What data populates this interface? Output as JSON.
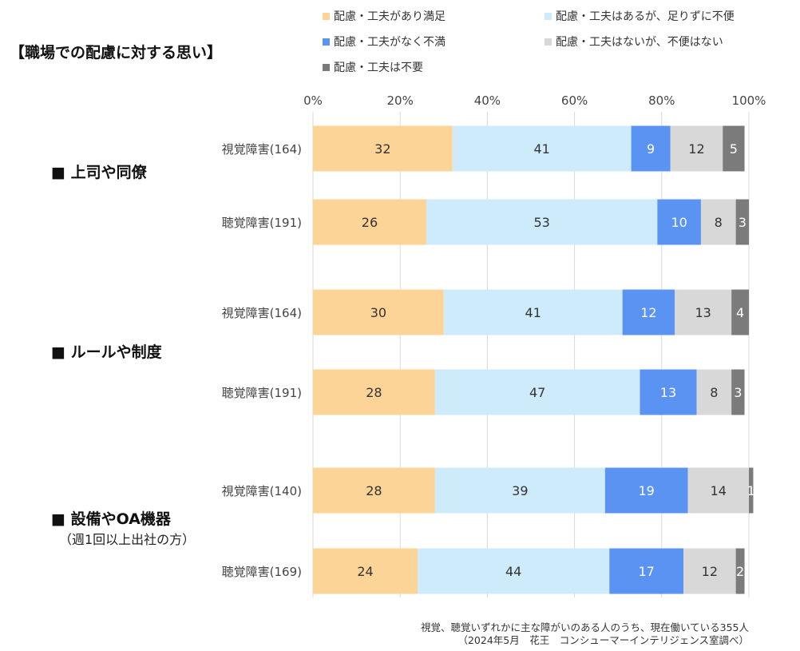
{
  "title": "【職場での配慮に対する思い】",
  "note": {
    "line1": "視覚、聴覚いずれかに主な障がいのある人のうち、現在働いている355人",
    "line2": "（2024年5月　花王　コンシューマーインテリジェンス室調べ）"
  },
  "chart_data": {
    "type": "bar",
    "orientation": "horizontal-stacked-percent",
    "xlim": [
      0,
      100
    ],
    "xticks": [
      "0%",
      "20%",
      "40%",
      "60%",
      "80%",
      "100%"
    ],
    "series": [
      {
        "name": "配慮・工夫があり満足",
        "color": "#fdd497",
        "label_dark": false
      },
      {
        "name": "配慮・工夫はあるが、足りずに不便",
        "color": "#cdebfb",
        "label_dark": false
      },
      {
        "name": "配慮・工夫がなく不満",
        "color": "#5b93f3",
        "label_dark": true
      },
      {
        "name": "配慮・工夫はないが、不便はない",
        "color": "#d8d8d8",
        "label_dark": false
      },
      {
        "name": "配慮・工夫は不要",
        "color": "#7b7b7b",
        "label_dark": true
      }
    ],
    "groups": [
      {
        "label": "■ 上司や同僚",
        "sublabel": "",
        "rows": [
          {
            "label": "視覚障害(164)",
            "values": [
              32,
              41,
              9,
              12,
              5
            ]
          },
          {
            "label": "聴覚障害(191)",
            "values": [
              26,
              53,
              10,
              8,
              3
            ]
          }
        ]
      },
      {
        "label": "■ ルールや制度",
        "sublabel": "",
        "rows": [
          {
            "label": "視覚障害(164)",
            "values": [
              30,
              41,
              12,
              13,
              4
            ]
          },
          {
            "label": "聴覚障害(191)",
            "values": [
              28,
              47,
              13,
              8,
              3
            ]
          }
        ]
      },
      {
        "label": "■ 設備やOA機器",
        "sublabel": "（週1回以上出社の方）",
        "rows": [
          {
            "label": "視覚障害(140)",
            "values": [
              28,
              39,
              19,
              14,
              1
            ]
          },
          {
            "label": "聴覚障害(169)",
            "values": [
              24,
              44,
              17,
              12,
              2
            ]
          }
        ]
      }
    ]
  }
}
